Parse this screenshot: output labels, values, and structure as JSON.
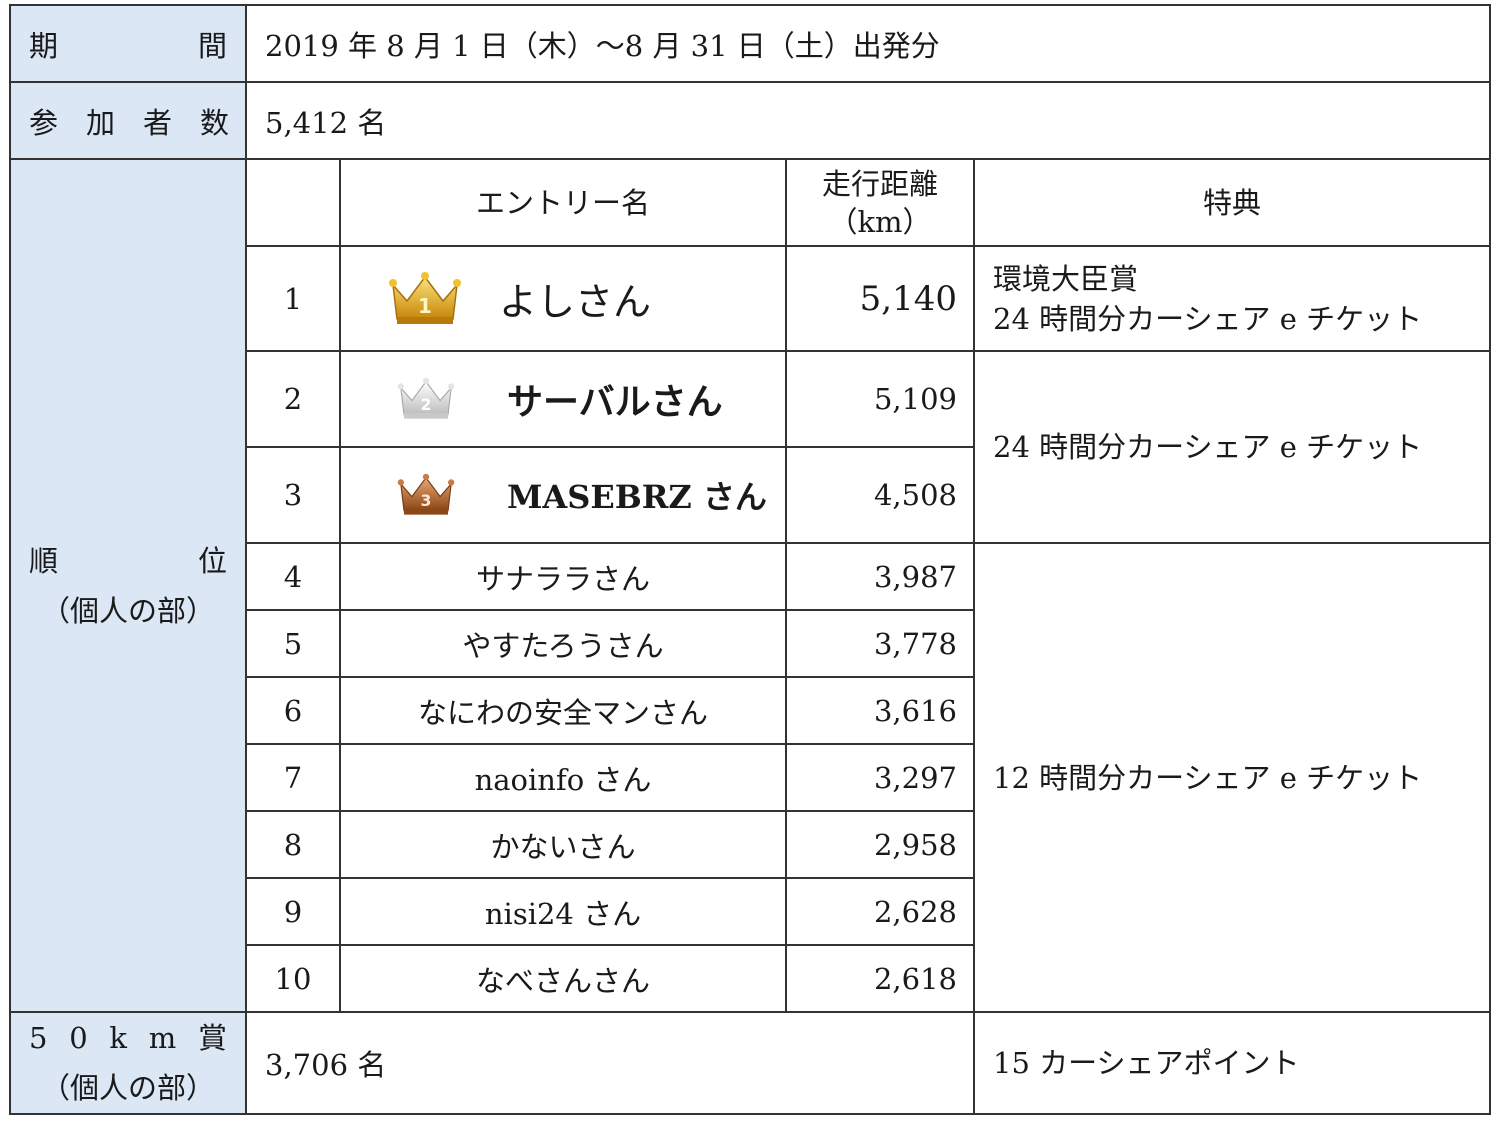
{
  "period": {
    "label_left": "期",
    "label_right": "間",
    "value": "2019 年 8 月 1 日（木）～8 月 31 日（土）出発分"
  },
  "participants": {
    "label_chars": [
      "参",
      "加",
      "者",
      "数"
    ],
    "value": "5,412 名"
  },
  "ranking": {
    "label_left": "順",
    "label_right": "位",
    "label_sub": "（個人の部）",
    "headers": {
      "entry": "エントリー名",
      "distance_line1": "走行距離",
      "distance_line2": "（km）",
      "benefit": "特典"
    },
    "rows": [
      {
        "rank": "1",
        "name": "よしさん",
        "distance": "5,140"
      },
      {
        "rank": "2",
        "name": "サーバルさん",
        "distance": "5,109"
      },
      {
        "rank": "3",
        "name": "MASEBRZ さん",
        "distance": "4,508"
      },
      {
        "rank": "4",
        "name": "サナララさん",
        "distance": "3,987"
      },
      {
        "rank": "5",
        "name": "やすたろうさん",
        "distance": "3,778"
      },
      {
        "rank": "6",
        "name": "なにわの安全マンさん",
        "distance": "3,616"
      },
      {
        "rank": "7",
        "name": "naoinfo さん",
        "distance": "3,297"
      },
      {
        "rank": "8",
        "name": "かないさん",
        "distance": "2,958"
      },
      {
        "rank": "9",
        "name": "nisi24 さん",
        "distance": "2,628"
      },
      {
        "rank": "10",
        "name": "なべさんさん",
        "distance": "2,618"
      }
    ],
    "benefits": {
      "rank1_line1": "環境大臣賞",
      "rank1_line2": "24 時間分カーシェア e チケット",
      "rank2_3": "24 時間分カーシェア e チケット",
      "rank4_10": "12 時間分カーシェア e チケット"
    }
  },
  "km50": {
    "label_chars": [
      "5",
      "0",
      "k",
      "m",
      "賞"
    ],
    "label_sub": "（個人の部）",
    "value": "3,706 名",
    "benefit": "15 カーシェアポイント"
  },
  "colors": {
    "label_bg": "#dbe7f5",
    "gold": "#e0a817",
    "silver": "#d8d8d8",
    "bronze": "#a0522d"
  },
  "icons": {
    "rank1": "gold-crown-icon",
    "rank2": "silver-crown-icon",
    "rank3": "bronze-crown-icon"
  }
}
